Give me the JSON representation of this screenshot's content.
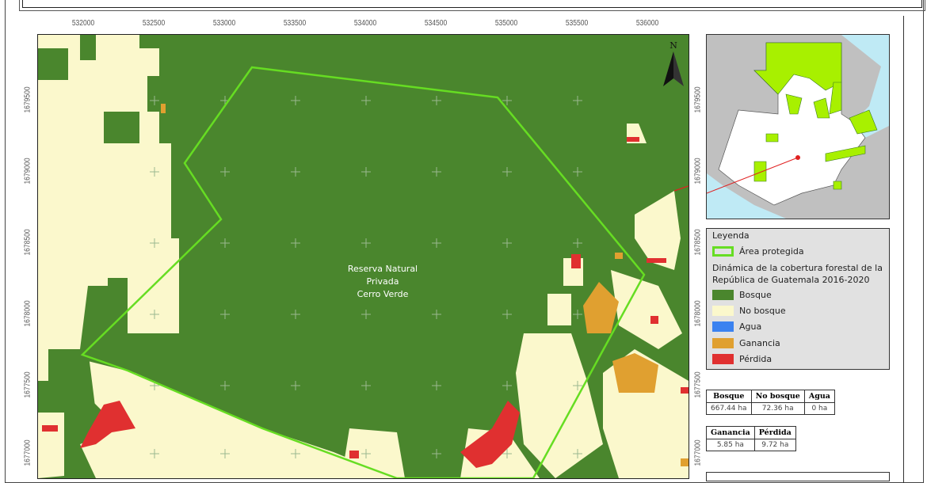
{
  "map": {
    "x_ticks": [
      "532000",
      "532500",
      "533000",
      "533500",
      "534000",
      "534500",
      "535000",
      "535500",
      "536000"
    ],
    "y_ticks": [
      "1679500",
      "1679000",
      "1678500",
      "1678000",
      "1677500",
      "1677000"
    ],
    "north_label": "N",
    "area_label": [
      "Reserva Natural",
      "Privada",
      "Cerro Verde"
    ]
  },
  "legend": {
    "title": "Leyenda",
    "protected_area": "Área protegida",
    "subtitle": "Dinámica de la cobertura forestal de la República de Guatemala 2016-2020",
    "items": [
      {
        "label": "Bosque",
        "color": "#4a862d"
      },
      {
        "label": "No bosque",
        "color": "#fbf8cc"
      },
      {
        "label": "Agua",
        "color": "#3b82f0"
      },
      {
        "label": "Ganancia",
        "color": "#e0a030"
      },
      {
        "label": "Pérdida",
        "color": "#e03030"
      }
    ],
    "protected_color": "#66dd22"
  },
  "table1": {
    "headers": [
      "Bosque",
      "No bosque",
      "Agua"
    ],
    "values": [
      "667.44 ha",
      "72.36 ha",
      "0 ha"
    ]
  },
  "table2": {
    "headers": [
      "Ganancia",
      "Pérdida"
    ],
    "values": [
      "5.85 ha",
      "9.72 ha"
    ]
  }
}
